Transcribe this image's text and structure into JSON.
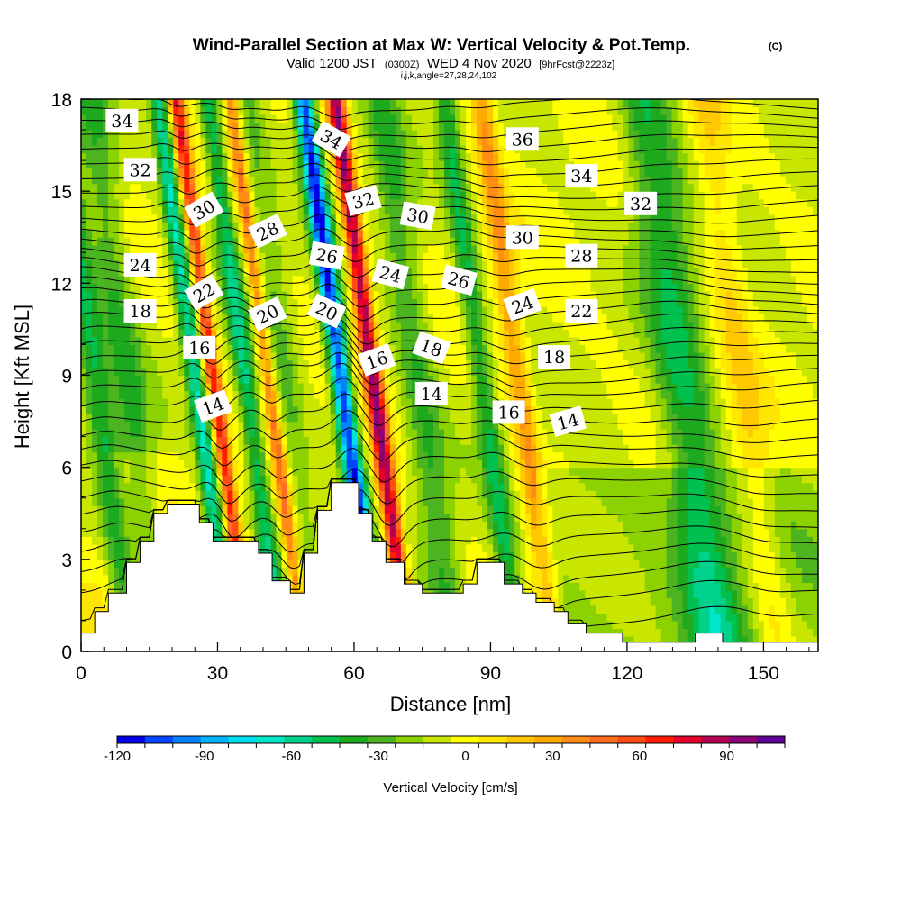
{
  "chart_data": {
    "type": "heatmap",
    "title": "Wind-Parallel Section at Max W: Vertical Velocity & Pot.Temp.",
    "copyright": "(C)",
    "subtitle": {
      "valid": "Valid 1200 JST",
      "utc": "(0300Z)",
      "date": "WED 4 Nov 2020",
      "fcst": "[9hrFcst@2223z]",
      "indices": "i,j,k,angle=27,28,24,102"
    },
    "xlabel": "Distance [nm]",
    "ylabel": "Height [Kft MSL]",
    "xlim": [
      0,
      162
    ],
    "ylim": [
      0,
      18
    ],
    "x_ticks": [
      0,
      30,
      60,
      90,
      120,
      150
    ],
    "y_ticks": [
      0,
      3,
      6,
      9,
      12,
      15,
      18
    ],
    "colorbar": {
      "label": "Vertical Velocity [cm/s]",
      "min": -120,
      "max": 110,
      "step": 10,
      "tick_values": [
        -120,
        -90,
        -60,
        -30,
        0,
        30,
        60,
        90
      ],
      "tick_labels": [
        "-120",
        "-90",
        "-60",
        "-30",
        "0",
        "30",
        "60",
        "90"
      ],
      "colors": [
        "#0000e8",
        "#0046ff",
        "#0082ff",
        "#00b4ff",
        "#00dcf0",
        "#00e6c8",
        "#00d28c",
        "#00c050",
        "#1eaa1e",
        "#4cb41e",
        "#8cd200",
        "#c8e600",
        "#ffff00",
        "#ffe600",
        "#ffc800",
        "#ffaa00",
        "#ff8c14",
        "#ff6e1e",
        "#ff4b14",
        "#ff1e00",
        "#e6002d",
        "#b40050",
        "#8c0078",
        "#600096"
      ]
    },
    "vertical_velocity_bands": [
      {
        "x": 3,
        "w": 3,
        "v": -40
      },
      {
        "x": 10,
        "w": 4,
        "v": -30
      },
      {
        "x": 25,
        "w": 2,
        "v": -60
      },
      {
        "x": 29,
        "w": 1.6,
        "v": 75
      },
      {
        "x": 36,
        "w": 2.2,
        "v": -50
      },
      {
        "x": 41,
        "w": 1.5,
        "v": 50
      },
      {
        "x": 45,
        "w": 3,
        "v": -20
      },
      {
        "x": 57,
        "w": 2.2,
        "v": -110
      },
      {
        "x": 64,
        "w": 2,
        "v": 100
      },
      {
        "x": 74,
        "w": 4,
        "v": -30
      },
      {
        "x": 88,
        "w": 2.5,
        "v": -40
      },
      {
        "x": 96,
        "w": 2.5,
        "v": 40
      },
      {
        "x": 132,
        "w": 6,
        "v": -40
      },
      {
        "x": 145,
        "w": 4,
        "v": 20
      }
    ],
    "terrain": [
      {
        "x": 0,
        "h": 0.6
      },
      {
        "x": 3,
        "h": 1.3
      },
      {
        "x": 6,
        "h": 1.9
      },
      {
        "x": 10,
        "h": 2.9
      },
      {
        "x": 13,
        "h": 3.6
      },
      {
        "x": 16,
        "h": 4.5
      },
      {
        "x": 19,
        "h": 4.8
      },
      {
        "x": 26,
        "h": 4.2
      },
      {
        "x": 29,
        "h": 3.6
      },
      {
        "x": 39,
        "h": 3.2
      },
      {
        "x": 42,
        "h": 2.3
      },
      {
        "x": 46,
        "h": 1.9
      },
      {
        "x": 49,
        "h": 3.2
      },
      {
        "x": 52,
        "h": 4.6
      },
      {
        "x": 55,
        "h": 5.5
      },
      {
        "x": 61,
        "h": 4.5
      },
      {
        "x": 64,
        "h": 3.6
      },
      {
        "x": 67,
        "h": 2.9
      },
      {
        "x": 71,
        "h": 2.2
      },
      {
        "x": 75,
        "h": 1.9
      },
      {
        "x": 84,
        "h": 2.2
      },
      {
        "x": 87,
        "h": 2.9
      },
      {
        "x": 93,
        "h": 2.2
      },
      {
        "x": 97,
        "h": 1.9
      },
      {
        "x": 100,
        "h": 1.6
      },
      {
        "x": 104,
        "h": 1.3
      },
      {
        "x": 107,
        "h": 0.9
      },
      {
        "x": 111,
        "h": 0.6
      },
      {
        "x": 119,
        "h": 0.3
      },
      {
        "x": 135,
        "h": 0.6
      },
      {
        "x": 141,
        "h": 0.3
      },
      {
        "x": 162,
        "h": 0.3
      }
    ],
    "theta_contours": {
      "base_heights": [
        1.0,
        1.8,
        2.4,
        3.0,
        3.6,
        4.2,
        4.8,
        5.4,
        6.0,
        6.6,
        7.1,
        7.6,
        8.1,
        8.6,
        9.0,
        9.4,
        9.8,
        10.2,
        10.6,
        11.0,
        11.4,
        11.8,
        12.2,
        12.6,
        13.0,
        13.4,
        13.8,
        14.2,
        14.6,
        15.0,
        15.4,
        15.8,
        16.2,
        16.6,
        17.0,
        17.4,
        17.8
      ]
    },
    "contour_labels": [
      {
        "text": "34",
        "x": 9,
        "y": 17.3,
        "rot": 0
      },
      {
        "text": "32",
        "x": 13,
        "y": 15.7,
        "rot": 0
      },
      {
        "text": "30",
        "x": 27,
        "y": 14.4,
        "rot": -30
      },
      {
        "text": "28",
        "x": 41,
        "y": 13.7,
        "rot": -25
      },
      {
        "text": "24",
        "x": 13,
        "y": 12.6,
        "rot": 0
      },
      {
        "text": "22",
        "x": 27,
        "y": 11.7,
        "rot": -30
      },
      {
        "text": "18",
        "x": 13,
        "y": 11.1,
        "rot": 0
      },
      {
        "text": "16",
        "x": 26,
        "y": 9.9,
        "rot": 0
      },
      {
        "text": "14",
        "x": 29,
        "y": 8.0,
        "rot": -20
      },
      {
        "text": "20",
        "x": 41,
        "y": 11.0,
        "rot": -25
      },
      {
        "text": "34",
        "x": 55,
        "y": 16.7,
        "rot": 30
      },
      {
        "text": "32",
        "x": 62,
        "y": 14.7,
        "rot": -15
      },
      {
        "text": "26",
        "x": 54,
        "y": 12.9,
        "rot": 10
      },
      {
        "text": "20",
        "x": 54,
        "y": 11.1,
        "rot": 25
      },
      {
        "text": "30",
        "x": 74,
        "y": 14.2,
        "rot": 10
      },
      {
        "text": "24",
        "x": 68,
        "y": 12.3,
        "rot": 15
      },
      {
        "text": "26",
        "x": 83,
        "y": 12.1,
        "rot": 15
      },
      {
        "text": "16",
        "x": 65,
        "y": 9.5,
        "rot": -20
      },
      {
        "text": "18",
        "x": 77,
        "y": 9.9,
        "rot": 20
      },
      {
        "text": "14",
        "x": 77,
        "y": 8.4,
        "rot": 0
      },
      {
        "text": "36",
        "x": 97,
        "y": 16.7,
        "rot": 0
      },
      {
        "text": "34",
        "x": 110,
        "y": 15.5,
        "rot": 0
      },
      {
        "text": "32",
        "x": 123,
        "y": 14.6,
        "rot": 0
      },
      {
        "text": "30",
        "x": 97,
        "y": 13.5,
        "rot": 0
      },
      {
        "text": "28",
        "x": 110,
        "y": 12.9,
        "rot": 0
      },
      {
        "text": "24",
        "x": 97,
        "y": 11.3,
        "rot": -20
      },
      {
        "text": "22",
        "x": 110,
        "y": 11.1,
        "rot": 0
      },
      {
        "text": "18",
        "x": 104,
        "y": 9.6,
        "rot": 0
      },
      {
        "text": "16",
        "x": 94,
        "y": 7.8,
        "rot": 0
      },
      {
        "text": "14",
        "x": 107,
        "y": 7.5,
        "rot": -15
      }
    ]
  }
}
